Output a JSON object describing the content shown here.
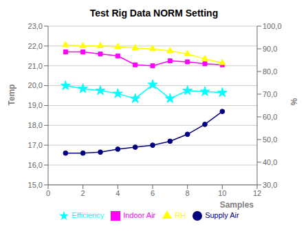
{
  "chart_data": {
    "type": "line",
    "title": "Test Rig Data NORM Setting",
    "xlabel": "Samples",
    "ylabel": "Temp",
    "y2label": "%",
    "x": [
      1,
      2,
      3,
      4,
      5,
      6,
      7,
      8,
      9,
      10
    ],
    "series": [
      {
        "name": "Indoor Air",
        "color": "#ff00ff",
        "marker": "square",
        "values": [
          21.7,
          21.7,
          21.6,
          21.5,
          21.05,
          21.0,
          21.25,
          21.2,
          21.1,
          21.05
        ]
      },
      {
        "name": "Supply Air",
        "color": "#000080",
        "marker": "circle",
        "values": [
          16.6,
          16.6,
          16.65,
          16.8,
          16.9,
          17.0,
          17.2,
          17.55,
          18.05,
          18.7
        ]
      },
      {
        "name": "RH",
        "color": "#ffff00",
        "marker": "triangle",
        "values": [
          22.05,
          22.0,
          22.0,
          21.95,
          21.9,
          21.85,
          21.75,
          21.6,
          21.35,
          21.15
        ]
      },
      {
        "name": "Efficiency",
        "color": "#00ffff",
        "marker": "star",
        "values": [
          20.0,
          19.85,
          19.75,
          19.6,
          19.35,
          20.05,
          19.35,
          19.75,
          19.7,
          19.65
        ]
      }
    ],
    "xlim": [
      0,
      12
    ],
    "xticks": [
      0,
      2,
      4,
      6,
      8,
      10,
      12
    ],
    "ylim": [
      15.0,
      23.0
    ],
    "yticks": [
      {
        "value": 15,
        "label": "15,0"
      },
      {
        "value": 16,
        "label": "16,0"
      },
      {
        "value": 17,
        "label": "17,0"
      },
      {
        "value": 18,
        "label": "18,0"
      },
      {
        "value": 19,
        "label": "19,0"
      },
      {
        "value": 20,
        "label": "20,0"
      },
      {
        "value": 21,
        "label": "21,0"
      },
      {
        "value": 22,
        "label": "22,0"
      },
      {
        "value": 23,
        "label": "23,0"
      }
    ],
    "y2lim": [
      30.0,
      100.0
    ],
    "y2ticks": [
      {
        "value": 30,
        "label": "30,0"
      },
      {
        "value": 40,
        "label": "40,0"
      },
      {
        "value": 50,
        "label": "50,0"
      },
      {
        "value": 60,
        "label": "60,0"
      },
      {
        "value": 70,
        "label": "70,0"
      },
      {
        "value": 80,
        "label": "80,0"
      },
      {
        "value": 90,
        "label": "90,0"
      },
      {
        "value": 100,
        "label": "100,0"
      }
    ],
    "grid": true,
    "legend": "bottom"
  }
}
